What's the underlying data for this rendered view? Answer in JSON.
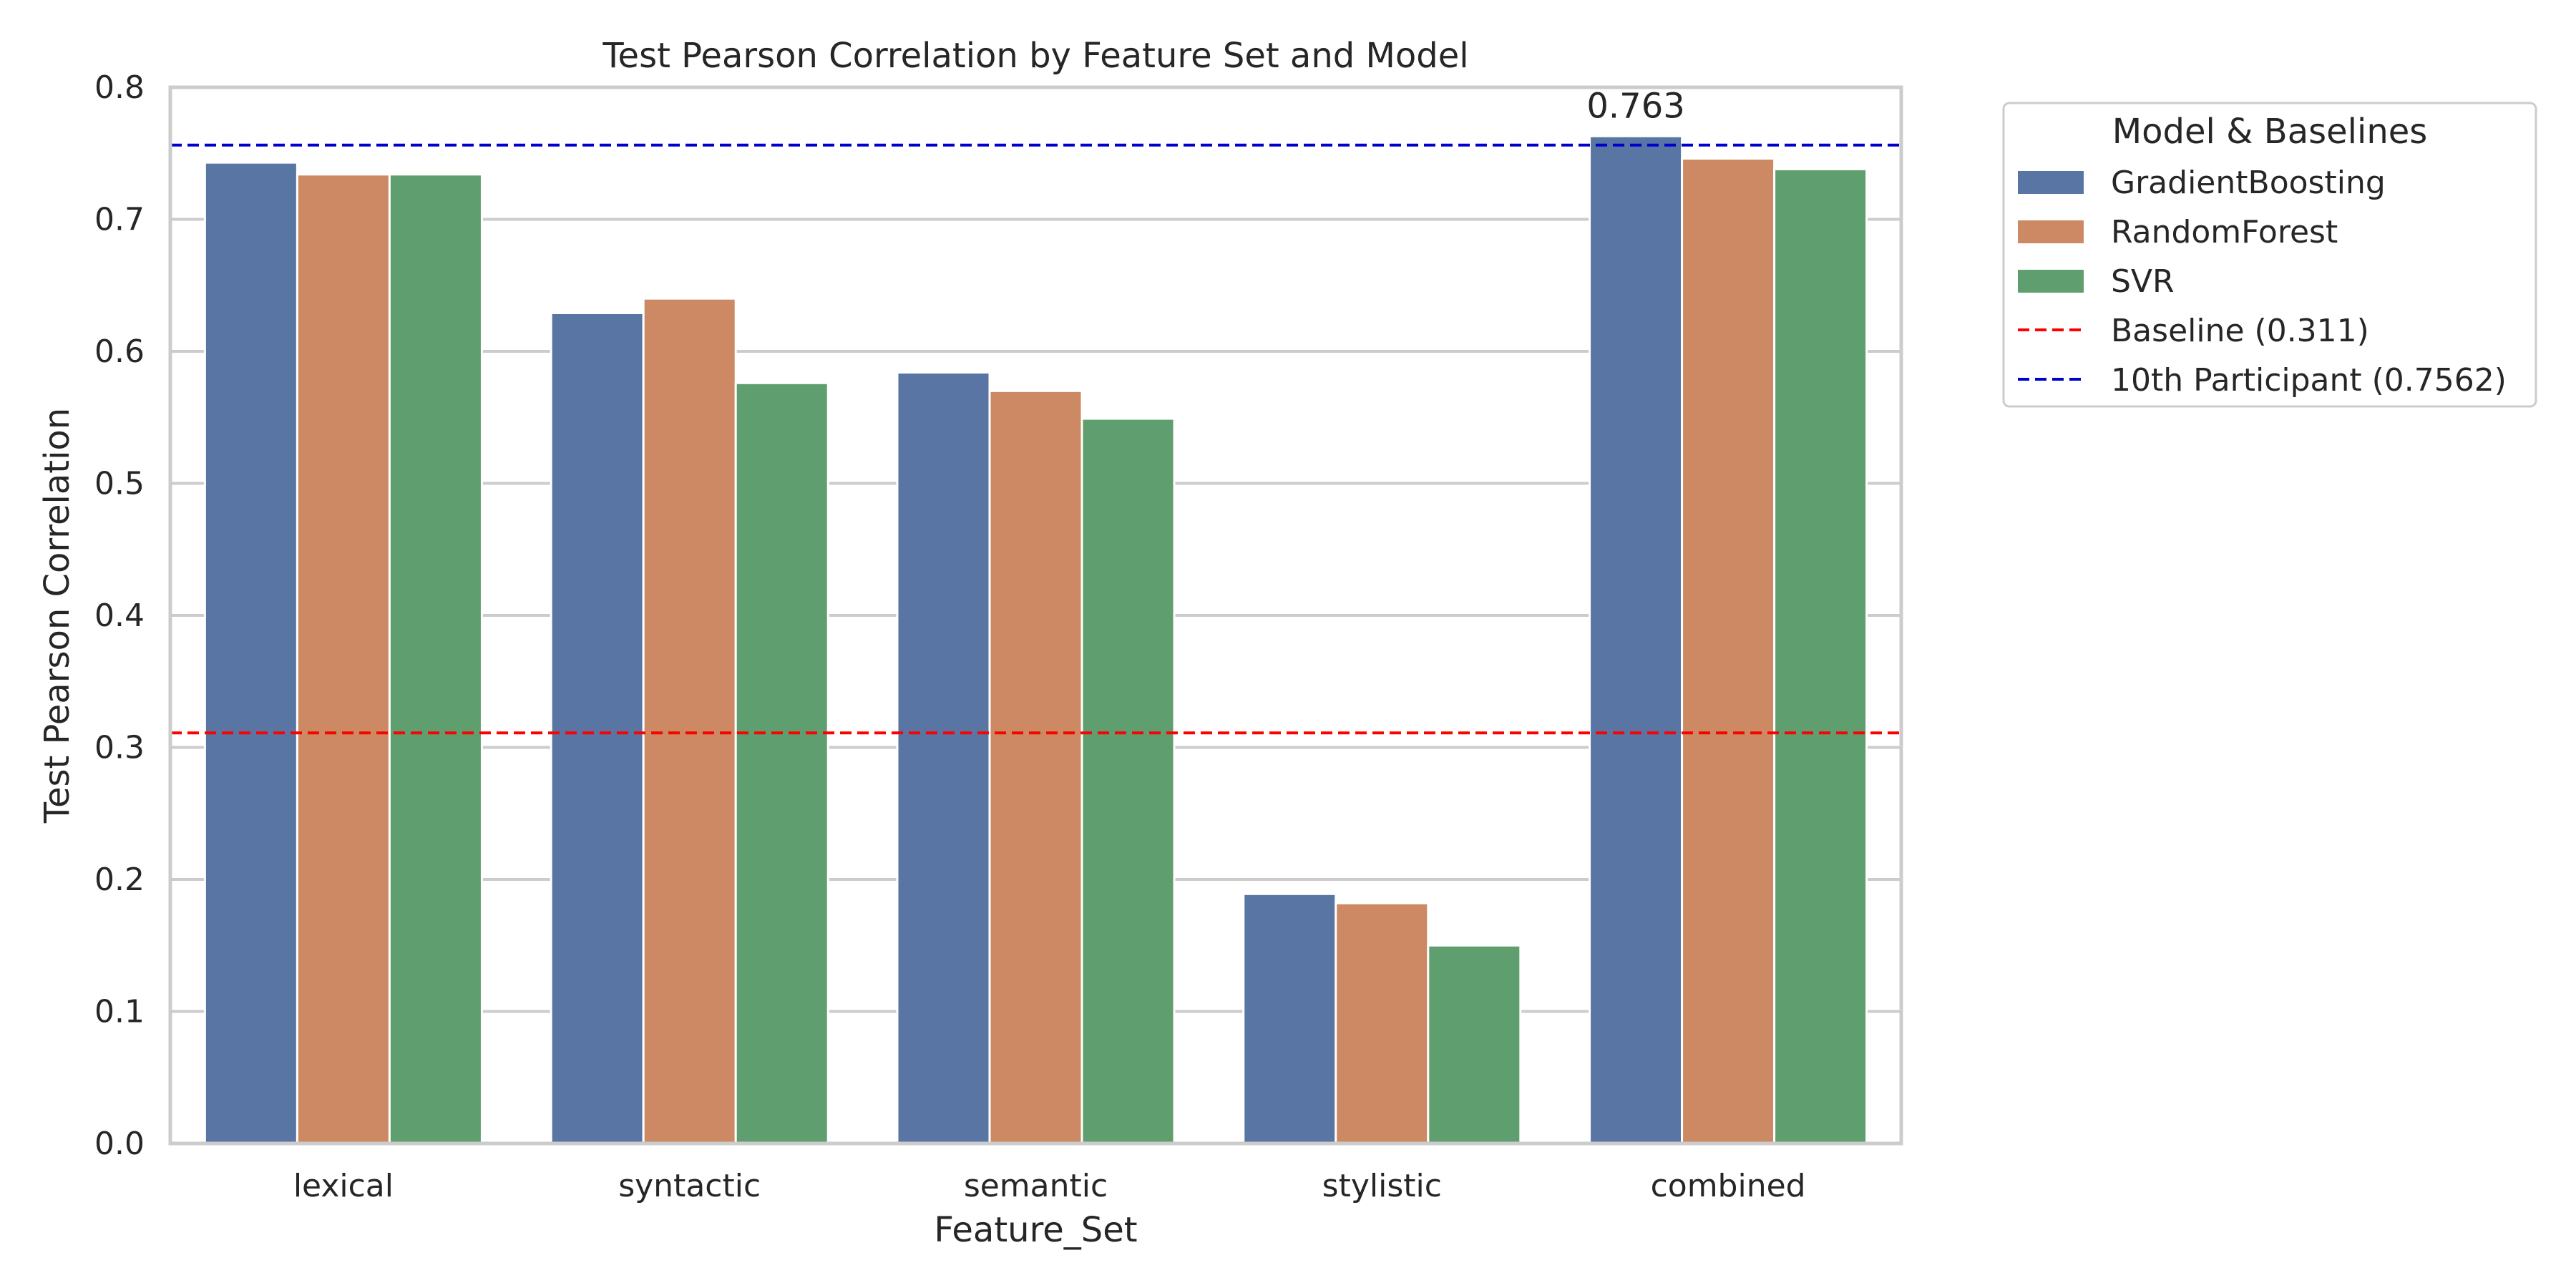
{
  "chart_data": {
    "type": "bar",
    "title": "Test Pearson Correlation by Feature Set and Model",
    "xlabel": "Feature_Set",
    "ylabel": "Test Pearson Correlation",
    "ylim": [
      0,
      0.8
    ],
    "yticks": [
      "0.0",
      "0.1",
      "0.2",
      "0.3",
      "0.4",
      "0.5",
      "0.6",
      "0.7",
      "0.8"
    ],
    "grid": "horizontal",
    "categories": [
      "lexical",
      "syntactic",
      "semantic",
      "stylistic",
      "combined"
    ],
    "series": [
      {
        "name": "GradientBoosting",
        "color": "#5875a4",
        "values": [
          0.743,
          0.629,
          0.584,
          0.189,
          0.763
        ]
      },
      {
        "name": "RandomForest",
        "color": "#cc8963",
        "values": [
          0.734,
          0.64,
          0.57,
          0.182,
          0.746
        ]
      },
      {
        "name": "SVR",
        "color": "#5f9e6e",
        "values": [
          0.734,
          0.576,
          0.549,
          0.15,
          0.738
        ]
      }
    ],
    "reference_lines": [
      {
        "name": "Baseline (0.311)",
        "value": 0.311,
        "color": "#ff0000",
        "style": "dashed"
      },
      {
        "name": "10th Participant (0.7562)",
        "value": 0.7562,
        "color": "#0000cc",
        "style": "dashed"
      }
    ],
    "annotations": [
      {
        "text": "0.763",
        "category": "combined",
        "series": "GradientBoosting",
        "value": 0.763
      }
    ],
    "legend": {
      "title": "Model & Baselines",
      "placement": "outside-right-top"
    }
  }
}
